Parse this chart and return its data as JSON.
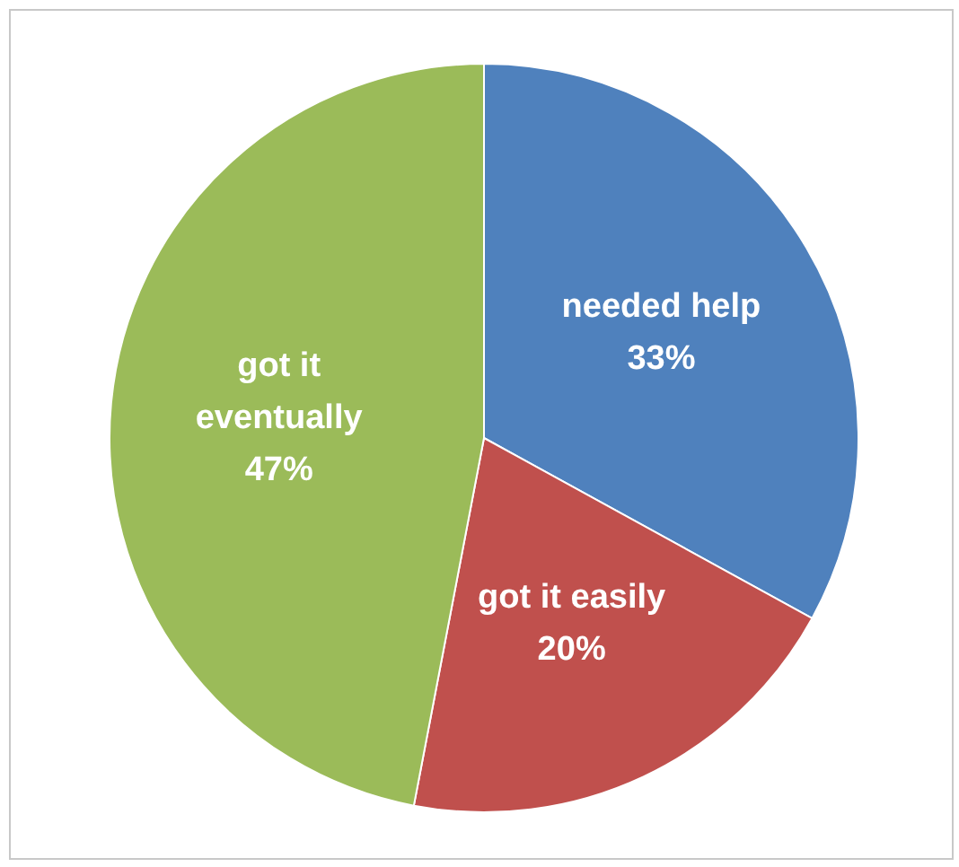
{
  "chart_data": {
    "type": "pie",
    "categories": [
      "needed help",
      "got it easily",
      "got it eventually"
    ],
    "values": [
      33,
      20,
      47
    ],
    "colors": [
      "#4f81bd",
      "#c0504d",
      "#9bbb59"
    ],
    "value_labels": [
      "33%",
      "20%",
      "47%"
    ],
    "legend": false
  }
}
